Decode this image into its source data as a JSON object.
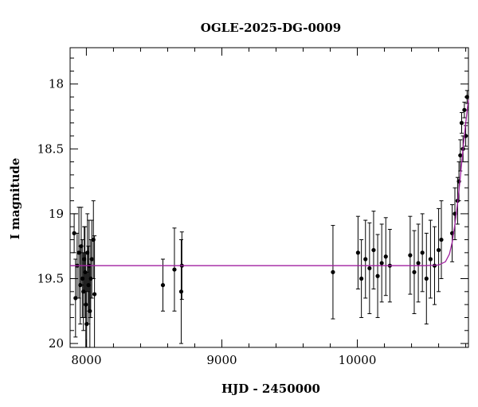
{
  "chart_data": {
    "type": "scatter",
    "title": "OGLE-2025-DG-0009",
    "xlabel": "HJD - 2450000",
    "ylabel": "I magnitude",
    "xlim": [
      7880,
      10820
    ],
    "ylim": [
      20.03,
      17.72
    ],
    "y_inverted": true,
    "grid": false,
    "x_ticks": [
      8000,
      9000,
      10000
    ],
    "x_tick_labels": [
      "8000",
      "9000",
      "10000"
    ],
    "y_ticks": [
      18,
      18.5,
      19,
      19.5,
      20
    ],
    "y_tick_labels": [
      "18",
      "18.5",
      "19",
      "19.5",
      "20"
    ],
    "colors": {
      "points": "#000000",
      "model": "#a020a0"
    },
    "series": [
      {
        "kind": "points_with_errorbars",
        "x": [
          7910,
          7920,
          7932,
          7945,
          7955,
          7962,
          7970,
          7978,
          7984,
          7990,
          7996,
          8002,
          8008,
          8014,
          8020,
          8026,
          8032,
          8040,
          8052,
          8060,
          8565,
          8650,
          8700,
          8705,
          9820,
          10005,
          10030,
          10060,
          10090,
          10120,
          10150,
          10180,
          10210,
          10240,
          10390,
          10420,
          10450,
          10480,
          10510,
          10540,
          10570,
          10600,
          10620,
          10700,
          10720,
          10740,
          10750,
          10760,
          10770,
          10780,
          10790,
          10800,
          10810
        ],
        "y": [
          19.15,
          19.65,
          19.4,
          19.3,
          19.55,
          19.25,
          19.5,
          19.6,
          19.35,
          19.45,
          19.7,
          19.85,
          19.3,
          19.55,
          19.4,
          19.75,
          19.5,
          19.35,
          19.2,
          19.62,
          19.55,
          19.43,
          19.6,
          19.4,
          19.45,
          19.3,
          19.5,
          19.35,
          19.42,
          19.28,
          19.48,
          19.38,
          19.33,
          19.4,
          19.32,
          19.45,
          19.38,
          19.3,
          19.5,
          19.35,
          19.4,
          19.28,
          19.2,
          19.15,
          19.0,
          18.9,
          18.75,
          18.55,
          18.3,
          18.5,
          18.2,
          18.4,
          18.1
        ],
        "yerr": [
          0.15,
          0.3,
          0.25,
          0.35,
          0.3,
          0.3,
          0.3,
          0.3,
          0.25,
          0.35,
          0.4,
          0.4,
          0.3,
          0.3,
          0.35,
          0.35,
          0.3,
          0.3,
          0.3,
          0.45,
          0.2,
          0.32,
          0.4,
          0.26,
          0.36,
          0.28,
          0.3,
          0.3,
          0.35,
          0.3,
          0.32,
          0.3,
          0.3,
          0.28,
          0.3,
          0.32,
          0.3,
          0.3,
          0.35,
          0.3,
          0.3,
          0.32,
          0.3,
          0.22,
          0.2,
          0.18,
          0.15,
          0.12,
          0.08,
          0.1,
          0.06,
          0.08,
          0.05
        ]
      },
      {
        "kind": "model_curve",
        "x": [
          7880,
          10000,
          10500,
          10600,
          10650,
          10680,
          10700,
          10720,
          10740,
          10760,
          10780,
          10800,
          10820
        ],
        "y": [
          19.4,
          19.4,
          19.4,
          19.395,
          19.37,
          19.31,
          19.22,
          19.08,
          18.92,
          18.72,
          18.5,
          18.3,
          18.12
        ]
      }
    ]
  }
}
